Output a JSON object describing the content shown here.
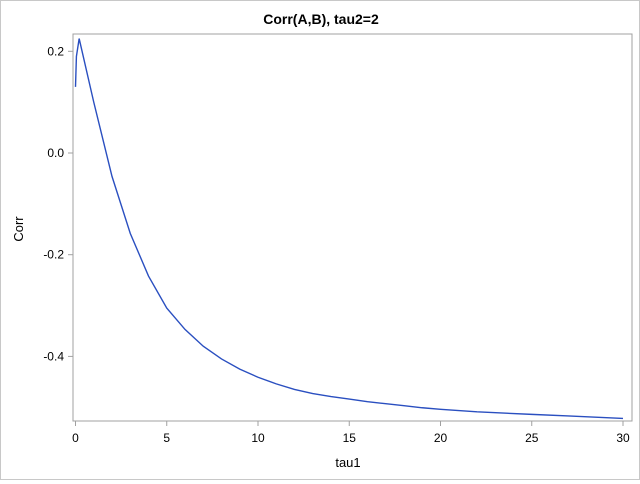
{
  "chart_data": {
    "type": "line",
    "title": "Corr(A,B), tau2=2",
    "xlabel": "tau1",
    "ylabel": "Corr",
    "xlim": [
      0,
      30
    ],
    "ylim": [
      -0.52,
      0.23
    ],
    "xticks": [
      0,
      5,
      10,
      15,
      20,
      25,
      30
    ],
    "yticks": [
      0.2,
      0.0,
      -0.2,
      -0.4
    ],
    "ytick_labels": [
      "0.2",
      "0.0",
      "-0.2",
      "-0.4"
    ],
    "grid": false,
    "line_color": "#2a4fc0",
    "x": [
      0,
      0.05,
      0.2,
      1,
      2,
      3,
      4,
      5,
      6,
      7,
      8,
      9,
      10,
      11,
      12,
      13,
      14,
      15,
      16,
      17,
      18,
      19,
      20,
      22,
      25,
      27,
      30
    ],
    "y": [
      0.13,
      0.19,
      0.225,
      0.1,
      -0.046,
      -0.158,
      -0.242,
      -0.305,
      -0.347,
      -0.38,
      -0.405,
      -0.425,
      -0.441,
      -0.454,
      -0.465,
      -0.473,
      -0.479,
      -0.484,
      -0.489,
      -0.493,
      -0.497,
      -0.501,
      -0.504,
      -0.509,
      -0.514,
      -0.517,
      -0.522
    ]
  }
}
